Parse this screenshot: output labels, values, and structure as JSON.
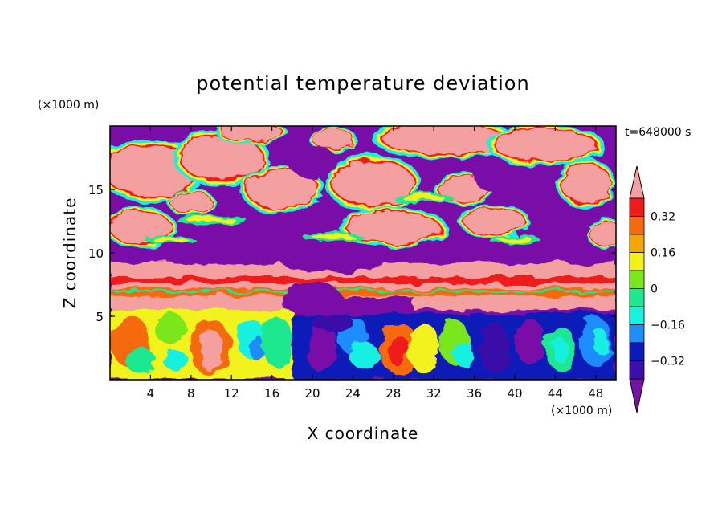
{
  "chart_data": {
    "type": "heatmap",
    "title": "potential temperature deviation",
    "xlabel": "X coordinate",
    "ylabel": "Z coordinate",
    "x_unit": "(×1000 m)",
    "y_unit": "(×1000 m)",
    "time_label": "t=648000 s",
    "xlim": [
      0,
      50
    ],
    "ylim": [
      0,
      20
    ],
    "x_ticks": [
      4,
      8,
      12,
      16,
      20,
      24,
      28,
      32,
      36,
      40,
      44,
      48
    ],
    "y_ticks": [
      5,
      10,
      15
    ],
    "x_tick_labels": [
      "4",
      "8",
      "12",
      "16",
      "20",
      "24",
      "28",
      "32",
      "36",
      "40",
      "44",
      "48"
    ],
    "y_tick_labels": [
      "5",
      "10",
      "15"
    ],
    "grid": false,
    "colorbar": {
      "position": "right",
      "levels": [
        -0.4,
        -0.32,
        -0.24,
        -0.16,
        -0.08,
        0,
        0.08,
        0.16,
        0.24,
        0.32,
        0.4
      ],
      "tick_values": [
        0.32,
        0.16,
        0,
        -0.16,
        -0.32
      ],
      "tick_labels": [
        "0.32",
        "0.16",
        "0",
        "−0.16",
        "−0.32"
      ],
      "colors": [
        "#7a0fa8",
        "#3a10a8",
        "#0a1cb8",
        "#1f8cff",
        "#18f0e0",
        "#1ee890",
        "#7ae61e",
        "#f2f21a",
        "#f5a50a",
        "#f56a10",
        "#ef1a1a",
        "#f4a0a0"
      ],
      "extend": "both"
    },
    "field_layers": [
      {
        "z_range": [
          0,
          5
        ],
        "description_value": "mixed, dominated by -0.4 to 0.4"
      },
      {
        "z_range": [
          5,
          9
        ],
        "dominant_value": 0.4
      },
      {
        "z_range": [
          9,
          20
        ],
        "dominant_values": [
          0.4,
          -0.4
        ]
      }
    ]
  }
}
